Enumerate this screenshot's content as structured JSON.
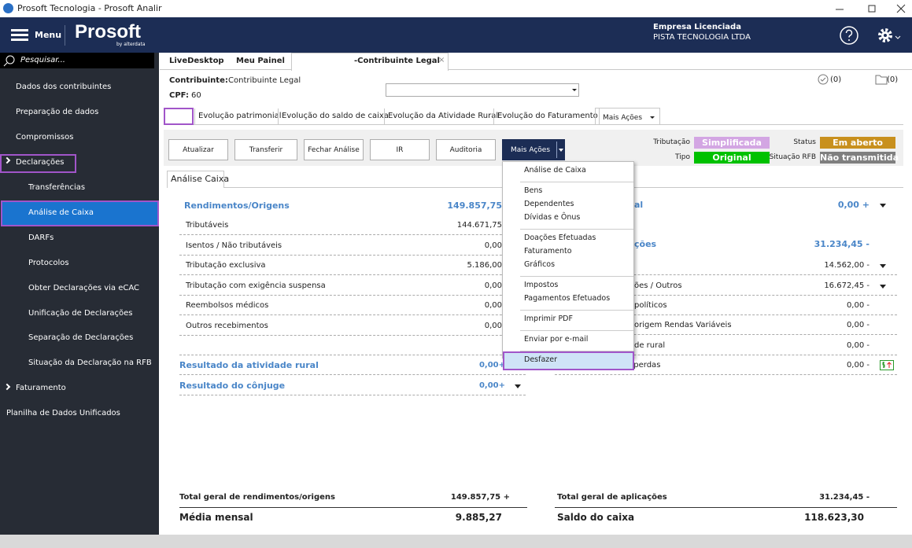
{
  "window": {
    "title": "Prosoft Tecnologia - Prosoft Analir"
  },
  "header": {
    "menu": "Menu",
    "logo": "Prosoft",
    "logo_sub": "by alterdata",
    "company_label": "Empresa Licenciada",
    "company_name": "PISTA TECNOLOGIA LTDA"
  },
  "sidebar": {
    "search": "Pesquisar...",
    "items_top": [
      "Dados dos contribuintes",
      "Preparação de dados",
      "Compromissos"
    ],
    "declaracoes": {
      "label": "Declarações",
      "items": [
        "Transferências",
        "Análise de Caixa",
        "DARFs",
        "Protocolos",
        "Obter Declarações via eCAC",
        "Unificação de Declarações",
        "Separação de Declarações",
        "Situação da Declaração na RFB"
      ]
    },
    "faturamento": "Faturamento",
    "planilha": "Planilha de Dados Unificados"
  },
  "tabs": [
    "LiveDesktop",
    "Meu Painel",
    "-Contribuinte Legal"
  ],
  "contributor": {
    "label": "Contribuinte:",
    "name": "Contribuinte Legal",
    "cpf_label": "CPF:",
    "cpf": "60"
  },
  "counters": [
    "(0)",
    "(0)"
  ],
  "subtabs": [
    "Evolução patrimonial",
    "Evolução do saldo de caixa",
    "Evolução da Atividade Rural",
    "Evolução do Faturamento",
    "Mais Ações"
  ],
  "buttons": [
    "Atualizar",
    "Transferir",
    "Fechar Análise",
    "IR",
    "Auditoria",
    "Mais Ações"
  ],
  "status": {
    "tributacao_label": "Tributação",
    "tributacao": "Simplificada",
    "tipo_label": "Tipo",
    "tipo": "Original",
    "status_label": "Status",
    "status": "Em aberto",
    "rfb_label": "Situação RFB",
    "rfb": "Não transmitida"
  },
  "panel_tab": "Análise Caixa",
  "left": {
    "title": "Rendimentos/Origens",
    "total": "149.857,75",
    "rows": [
      {
        "label": "Tributáveis",
        "value": "144.671,75"
      },
      {
        "label": "Isentos / Não tributáveis",
        "value": "0,00"
      },
      {
        "label": "Tributação exclusiva",
        "value": "5.186,00"
      },
      {
        "label": "Tributação com exigência suspensa",
        "value": "0,00"
      },
      {
        "label": "Reembolsos médicos",
        "value": "0,00"
      },
      {
        "label": "Outros recebimentos",
        "value": "0,00"
      }
    ],
    "results": [
      {
        "label": "Resultado da atividade rural",
        "value": "0,00+"
      },
      {
        "label": "Resultado do cônjuge",
        "value": "0,00+"
      }
    ]
  },
  "right": {
    "title": "al",
    "total": "0,00 +",
    "subtitle": "ções",
    "subtotal": "31.234,45 -",
    "rows": [
      {
        "value": "14.562,00 -"
      },
      {
        "label": "ões / Outros",
        "value": "16.672,45 -"
      },
      {
        "label": "políticos",
        "value": "0,00 -"
      },
      {
        "label": "origem Rendas Variáveis",
        "value": "0,00 -"
      },
      {
        "label": "de rural",
        "value": "0,00 -"
      },
      {
        "label": "Outros gastos ou perdas",
        "value": "0,00 -"
      }
    ]
  },
  "footer": {
    "total_left_label": "Total geral de rendimentos/origens",
    "total_left": "149.857,75 +",
    "total_right_label": "Total geral de aplicações",
    "total_right": "31.234,45 -",
    "media_label": "Média mensal",
    "media": "9.885,27",
    "saldo_label": "Saldo do caixa",
    "saldo": "118.623,30"
  },
  "more_actions_menu": [
    [
      "Análise de Caixa"
    ],
    [
      "Bens",
      "Dependentes",
      "Dívidas e Ônus"
    ],
    [
      "Doações Efetuadas",
      "Faturamento",
      "Gráficos"
    ],
    [
      "Impostos",
      "Pagamentos Efetuados"
    ],
    [
      "Imprimir PDF"
    ],
    [
      "Enviar por e-mail"
    ],
    [
      "Desfazer"
    ]
  ]
}
